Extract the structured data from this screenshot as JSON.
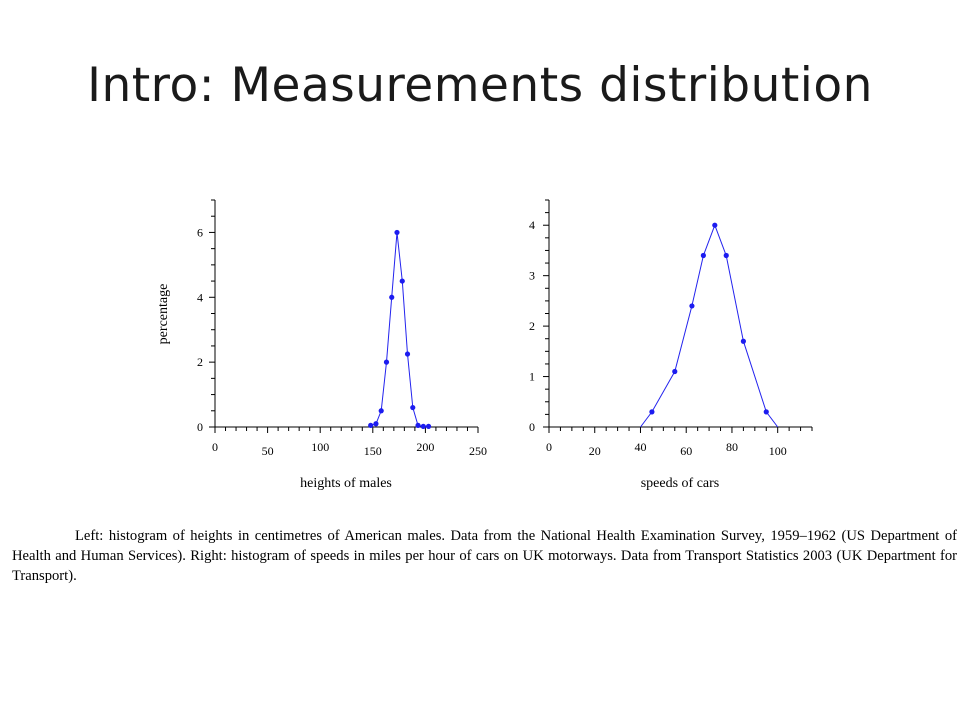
{
  "slide": {
    "title": "Intro: Measurements distribution",
    "caption": "Left: histogram of heights in centimetres of American males. Data from the National Health Examination Survey, 1959–1962 (US Department of Health and Human Services). Right: histogram of speeds in miles per hour of cars on UK motorways. Data from Transport Statistics 2003 (UK Department for Transport)."
  },
  "chart_data": [
    {
      "type": "line",
      "title": "",
      "xlabel": "heights of males",
      "ylabel": "percentage",
      "xlim": [
        0,
        250
      ],
      "ylim": [
        0,
        7
      ],
      "xticks": [
        0,
        50,
        100,
        150,
        200,
        250
      ],
      "yticks": [
        0,
        2,
        4,
        6
      ],
      "grid": false,
      "color": "#1c1cf0",
      "series": [
        {
          "x": [
            148,
            153,
            158,
            163,
            168,
            173,
            178,
            183,
            188,
            193,
            198,
            203
          ],
          "y": [
            0.05,
            0.1,
            0.5,
            2.0,
            4.0,
            6.0,
            4.5,
            2.25,
            0.6,
            0.05,
            0.02,
            0.02
          ]
        }
      ]
    },
    {
      "type": "line",
      "title": "",
      "xlabel": "speeds of cars",
      "ylabel": "",
      "xlim": [
        0,
        115
      ],
      "ylim": [
        0,
        4.5
      ],
      "xticks": [
        0,
        20,
        40,
        60,
        80,
        100
      ],
      "yticks": [
        0,
        1,
        2,
        3,
        4
      ],
      "grid": false,
      "color": "#1c1cf0",
      "series": [
        {
          "x": [
            40,
            45,
            55,
            62.5,
            67.5,
            72.5,
            77.5,
            85,
            95,
            100
          ],
          "y": [
            0,
            0.3,
            1.1,
            2.4,
            3.4,
            4.0,
            3.4,
            1.7,
            0.3,
            0
          ],
          "markers": [
            false,
            true,
            true,
            true,
            true,
            true,
            true,
            true,
            true,
            false
          ]
        }
      ]
    }
  ]
}
